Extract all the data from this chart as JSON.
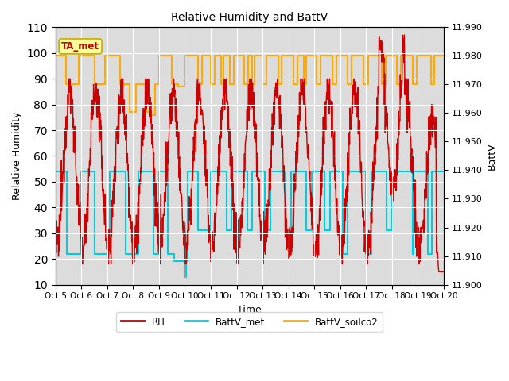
{
  "title": "Relative Humidity and BattV",
  "ylabel_left": "Relative Humidity",
  "ylabel_right": "BattV",
  "xlabel": "Time",
  "ylim_left": [
    10,
    110
  ],
  "ylim_right": [
    11.9,
    11.99
  ],
  "yticks_left": [
    10,
    20,
    30,
    40,
    50,
    60,
    70,
    80,
    90,
    100,
    110
  ],
  "yticks_right": [
    11.9,
    11.91,
    11.92,
    11.93,
    11.94,
    11.95,
    11.96,
    11.97,
    11.98,
    11.99
  ],
  "xtick_labels": [
    "Oct 5",
    "Oct 6",
    "Oct 7",
    "Oct 8",
    "Oct 9",
    "Oct 10",
    "Oct 11",
    "Oct 12",
    "Oct 13",
    "Oct 14",
    "Oct 15",
    "Oct 16",
    "Oct 17",
    "Oct 18",
    "Oct 19",
    "Oct 20"
  ],
  "color_RH": "#cc0000",
  "color_batt_met": "#00ccdd",
  "color_batt_soilco2": "#ffaa00",
  "background_color": "#dcdcdc",
  "annotation_text": "TA_met",
  "annotation_color": "#cc0000",
  "annotation_bg": "#ffff99",
  "legend_labels": [
    "RH",
    "BattV_met",
    "BattV_soilco2"
  ],
  "rh_seed": 12345,
  "batt_met_seed": 99,
  "batt_soilco2_seed": 77
}
